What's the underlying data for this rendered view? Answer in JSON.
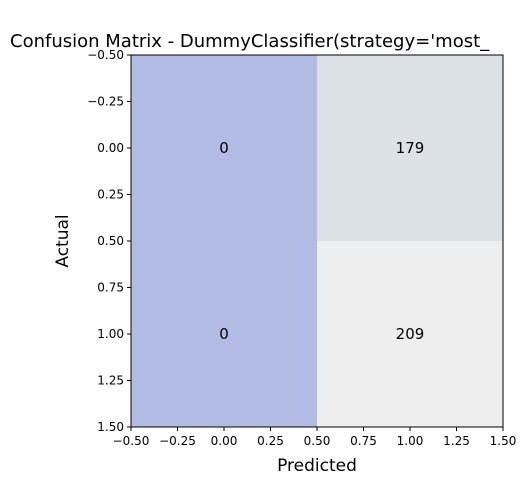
{
  "chart_data": {
    "type": "heatmap",
    "title": "Confusion Matrix - DummyClassifier(strategy='most_",
    "xlabel": "Predicted",
    "ylabel": "Actual",
    "xlim": [
      -0.5,
      1.5
    ],
    "ylim": [
      1.5,
      -0.5
    ],
    "x_ticks": [
      "−0.50",
      "−0.25",
      "0.00",
      "0.25",
      "0.50",
      "0.75",
      "1.00",
      "1.25",
      "1.50"
    ],
    "y_ticks": [
      "−0.50",
      "−0.25",
      "0.00",
      "0.25",
      "0.50",
      "0.75",
      "1.00",
      "1.25",
      "1.50"
    ],
    "rows": [
      {
        "cells": [
          {
            "value": 0,
            "label": "0",
            "color": "#b2bbe4"
          },
          {
            "value": 179,
            "label": "179",
            "color": "#dce2e6"
          }
        ]
      },
      {
        "cells": [
          {
            "value": 0,
            "label": "0",
            "color": "#b2bbe4"
          },
          {
            "value": 209,
            "label": "209",
            "color": "#eeeeee"
          }
        ]
      }
    ],
    "grid": false,
    "legend": "none"
  }
}
